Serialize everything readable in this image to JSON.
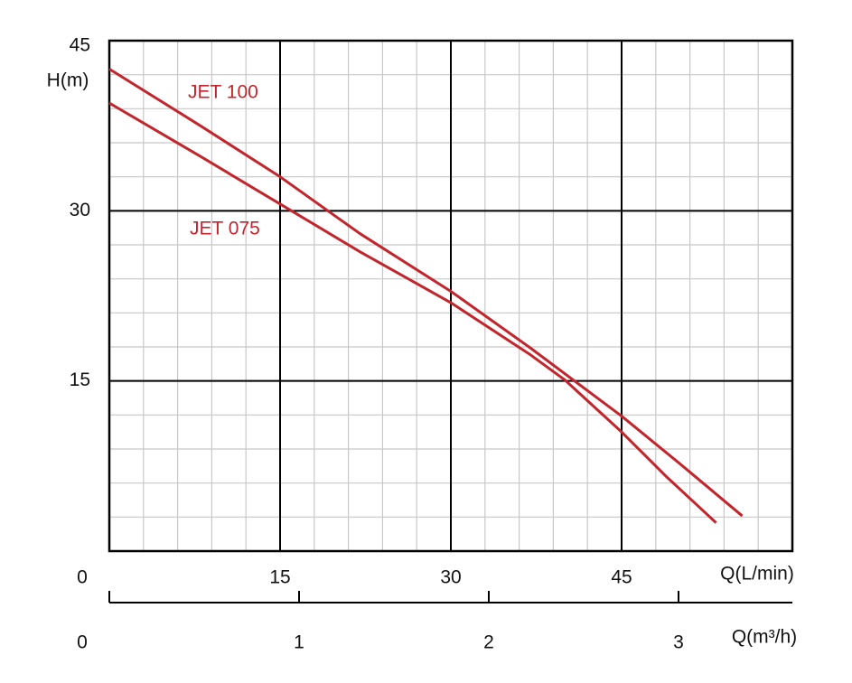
{
  "chart_data": {
    "type": "line",
    "y_label": "H(m)",
    "x_label": "Q(L/min)",
    "x2_label": "Q(m³/h)",
    "xlim": [
      0,
      60
    ],
    "xticks": [
      0,
      15,
      30,
      45
    ],
    "ylim": [
      0,
      45
    ],
    "yticks": [
      15,
      30,
      45
    ],
    "x2lim": [
      0,
      3.6
    ],
    "x2ticks": [
      0,
      1,
      2,
      3
    ],
    "grid": true,
    "series": [
      {
        "name": "JET 100",
        "color": "#c3252c",
        "x": [
          0,
          8,
          15,
          22,
          30,
          37,
          45,
          50,
          55.6
        ],
        "values": [
          42.5,
          37.5,
          33,
          28,
          22.9,
          17.9,
          11.9,
          7.8,
          3.1
        ]
      },
      {
        "name": "JET 075",
        "color": "#c3252c",
        "x": [
          0,
          8,
          15,
          22,
          30,
          37,
          40,
          45,
          49,
          53.3
        ],
        "values": [
          39.5,
          34.8,
          30.6,
          26.4,
          21.9,
          17.3,
          15.1,
          10.5,
          6.5,
          2.5
        ]
      }
    ]
  }
}
